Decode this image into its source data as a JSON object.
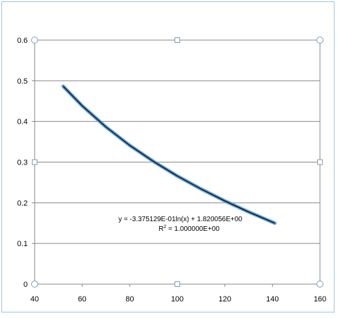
{
  "chart_data": {
    "type": "line",
    "title": "",
    "xlabel": "",
    "ylabel": "",
    "xlim": [
      40,
      160
    ],
    "ylim": [
      0,
      0.6
    ],
    "x_ticks": [
      40,
      60,
      80,
      100,
      120,
      140,
      160
    ],
    "y_ticks": [
      0,
      0.1,
      0.2,
      0.3,
      0.4,
      0.5,
      0.6
    ],
    "x_tick_labels": [
      "40",
      "60",
      "80",
      "100",
      "120",
      "140",
      "160"
    ],
    "y_tick_labels": [
      "0",
      "0.1",
      "0.2",
      "0.3",
      "0.4",
      "0.5",
      "0.6"
    ],
    "grid": {
      "horizontal": true,
      "vertical": false
    },
    "legend": "none",
    "series": [
      {
        "x": [
          52,
          60,
          70,
          80,
          90,
          100,
          110,
          120,
          130,
          141
        ],
        "y": [
          0.4864,
          0.4383,
          0.3863,
          0.3412,
          0.3015,
          0.2659,
          0.2338,
          0.2044,
          0.1774,
          0.15
        ],
        "color": "#5b9bd5",
        "trendline_color": "#000000"
      }
    ],
    "trendline": {
      "equation": "y = -3.375129E-01ln(x) + 1.820056E+00",
      "r_squared_prefix": "R",
      "r_squared_sup": "2",
      "r_squared_value": " = 1.000000E+00"
    }
  }
}
